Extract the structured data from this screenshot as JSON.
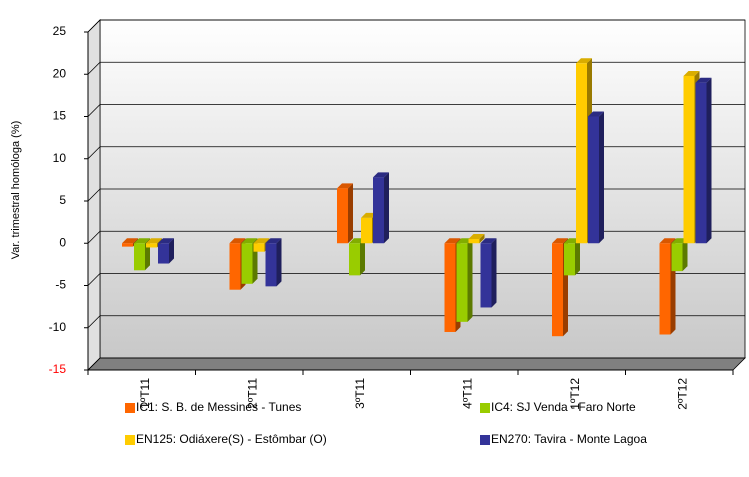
{
  "chart_data": {
    "type": "bar",
    "y_label": "Var. trimestral homóloga (%)",
    "categories": [
      "1ºT11",
      "2ºT11",
      "3ºT11",
      "4ºT11",
      "1ºT12",
      "2ºT12"
    ],
    "series": [
      {
        "name": "IC1: S. B. de Messines - Tunes",
        "color": "#ff6600",
        "values": [
          -0.4,
          -5.5,
          6.5,
          -10.5,
          -11.0,
          -10.8
        ]
      },
      {
        "name": "IC4: SJ Venda - Faro Norte",
        "color": "#99cc00",
        "values": [
          -3.2,
          -4.8,
          -3.8,
          -9.3,
          -3.8,
          -3.3
        ]
      },
      {
        "name": "EN125: Odiáxere(S) - Estômbar (O)",
        "color": "#ffcc00",
        "values": [
          -0.5,
          -1.0,
          3.0,
          0.5,
          21.3,
          19.8
        ]
      },
      {
        "name": "EN270: Tavira - Monte Lagoa",
        "color": "#333399",
        "values": [
          -2.4,
          -5.1,
          7.8,
          -7.6,
          15.0,
          19.0
        ]
      }
    ],
    "ylim": [
      -15,
      25
    ],
    "yticks": [
      -15,
      -10,
      -5,
      0,
      5,
      10,
      15,
      20,
      25
    ],
    "grid": true
  }
}
